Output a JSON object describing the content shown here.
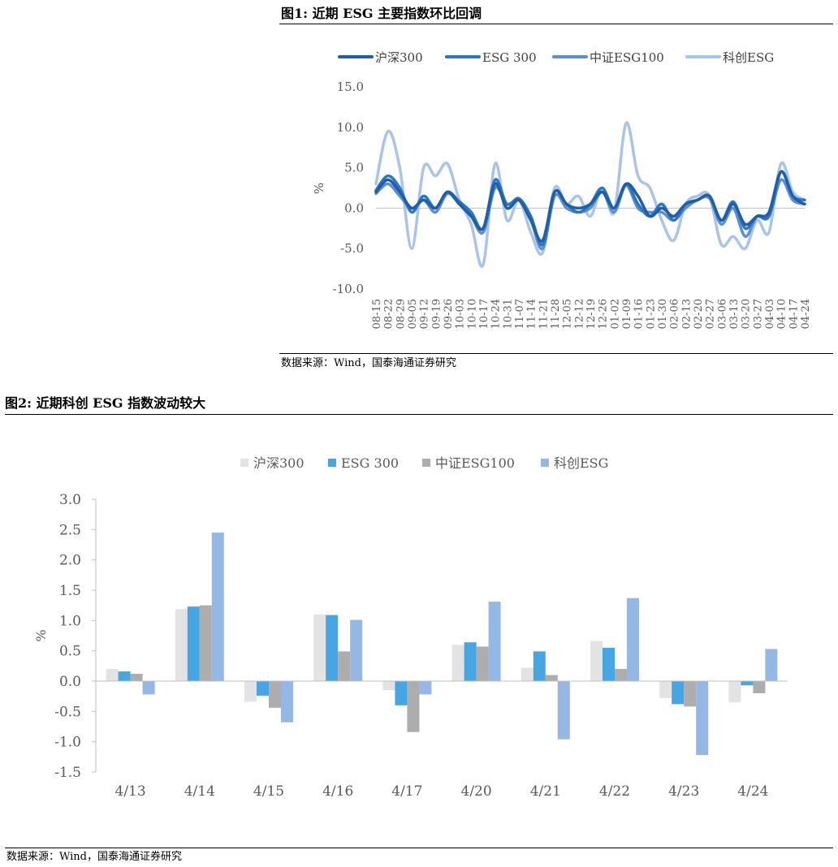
{
  "figure1": {
    "title": "图1:  近期 ESG 主要指数环比回调",
    "source": "数据来源：Wind，国泰海通证券研究"
  },
  "figure2": {
    "title": "图2:  近期科创 ESG 指数波动较大",
    "source": "数据来源：Wind，国泰海通证券研究"
  },
  "chart_data": [
    {
      "type": "line",
      "ylabel": "%",
      "ylim": [
        -10,
        15
      ],
      "yticks": [
        "15.0",
        "10.0",
        "5.0",
        "0.0",
        "-5.0",
        "-10.0"
      ],
      "x": [
        "08-15",
        "08-22",
        "08-29",
        "09-05",
        "09-12",
        "09-19",
        "09-26",
        "10-03",
        "10-10",
        "10-17",
        "10-24",
        "10-31",
        "11-07",
        "11-14",
        "11-21",
        "11-28",
        "12-05",
        "12-12",
        "12-19",
        "12-26",
        "01-02",
        "01-09",
        "01-16",
        "01-23",
        "01-30",
        "02-06",
        "02-13",
        "02-20",
        "02-27",
        "03-06",
        "03-13",
        "03-20",
        "03-27",
        "04-03",
        "04-10",
        "04-17",
        "04-24"
      ],
      "legend_position": "top",
      "series": [
        {
          "name": "沪深300",
          "color": "#1f5fa8",
          "values": [
            2.0,
            3.5,
            2.0,
            0.0,
            1.0,
            0.0,
            2.0,
            0.5,
            -1.0,
            -2.5,
            3.0,
            0.0,
            1.0,
            -1.5,
            -4.0,
            2.0,
            0.5,
            0.0,
            0.5,
            2.0,
            0.0,
            3.0,
            1.5,
            -1.0,
            0.0,
            -1.0,
            0.5,
            1.0,
            1.5,
            -1.5,
            0.5,
            -2.0,
            -1.0,
            -0.5,
            4.5,
            1.5,
            0.5
          ]
        },
        {
          "name": "ESG 300",
          "color": "#2a76c4",
          "values": [
            2.2,
            4.0,
            2.5,
            -0.5,
            1.5,
            0.0,
            2.0,
            0.8,
            -0.5,
            -2.5,
            3.5,
            0.5,
            1.2,
            -1.0,
            -4.5,
            2.0,
            0.5,
            -0.5,
            0.5,
            2.5,
            0.0,
            3.0,
            0.5,
            -1.0,
            0.5,
            -1.5,
            0.5,
            1.0,
            1.5,
            -1.5,
            0.8,
            -2.5,
            -1.0,
            -1.0,
            4.5,
            1.5,
            1.0
          ]
        },
        {
          "name": "中证ESG100",
          "color": "#5b8fd1",
          "values": [
            1.8,
            3.0,
            1.5,
            0.0,
            1.0,
            -0.5,
            1.8,
            0.5,
            -1.0,
            -3.0,
            2.5,
            0.5,
            1.0,
            -1.5,
            -5.0,
            1.5,
            0.0,
            -0.5,
            0.0,
            2.0,
            -0.5,
            2.8,
            0.0,
            -0.5,
            -0.5,
            -1.5,
            0.0,
            1.0,
            1.2,
            -2.0,
            0.0,
            -3.5,
            -1.0,
            -1.0,
            3.5,
            1.0,
            0.5
          ]
        },
        {
          "name": "科创ESG",
          "color": "#a9c4e8",
          "values": [
            3.0,
            9.5,
            5.0,
            -5.0,
            5.0,
            4.0,
            5.5,
            1.0,
            -2.0,
            -7.0,
            5.5,
            -1.5,
            1.0,
            -3.0,
            -5.5,
            2.5,
            0.5,
            1.5,
            -1.0,
            2.5,
            -0.5,
            10.5,
            4.0,
            2.5,
            -1.5,
            -4.0,
            0.5,
            1.5,
            1.5,
            -4.5,
            -3.5,
            -5.0,
            -1.5,
            -3.0,
            5.5,
            2.0,
            1.0
          ]
        }
      ]
    },
    {
      "type": "bar",
      "ylabel": "%",
      "ylim": [
        -1.5,
        3.0
      ],
      "yticks": [
        "3.0",
        "2.5",
        "2.0",
        "1.5",
        "1.0",
        "0.5",
        "0.0",
        "-0.5",
        "-1.0",
        "-1.5"
      ],
      "categories": [
        "4/13",
        "4/14",
        "4/15",
        "4/16",
        "4/17",
        "4/20",
        "4/21",
        "4/22",
        "4/23",
        "4/24"
      ],
      "legend_position": "top",
      "series": [
        {
          "name": "沪深300",
          "color": "#e3e3e3",
          "values": [
            0.2,
            1.19,
            -0.34,
            1.1,
            -0.15,
            0.6,
            0.22,
            0.66,
            -0.28,
            -0.35
          ]
        },
        {
          "name": "ESG 300",
          "color": "#46a5e3",
          "values": [
            0.16,
            1.23,
            -0.24,
            1.09,
            -0.4,
            0.64,
            0.49,
            0.55,
            -0.38,
            -0.07
          ]
        },
        {
          "name": "中证ESG100",
          "color": "#adadad",
          "values": [
            0.12,
            1.25,
            -0.44,
            0.49,
            -0.84,
            0.57,
            0.1,
            0.2,
            -0.42,
            -0.2
          ]
        },
        {
          "name": "科创ESG",
          "color": "#94b8e3",
          "values": [
            -0.22,
            2.45,
            -0.68,
            1.01,
            -0.22,
            1.31,
            -0.96,
            1.37,
            -1.22,
            0.53
          ]
        }
      ]
    }
  ]
}
